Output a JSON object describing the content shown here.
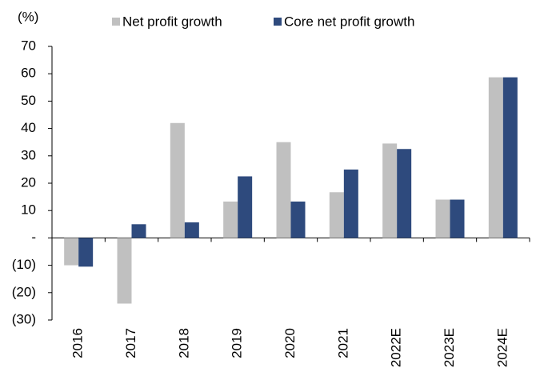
{
  "chart_data": {
    "type": "bar",
    "y_label": "(%)",
    "categories": [
      "2016",
      "2017",
      "2018",
      "2019",
      "2020",
      "2021",
      "2022E",
      "2023E",
      "2024E"
    ],
    "series": [
      {
        "name": "Net profit growth",
        "color": "#c0c0c0",
        "values": [
          -10,
          -24,
          42,
          13.3,
          35,
          16.7,
          34.5,
          14,
          58.7
        ]
      },
      {
        "name": "Core net profit growth",
        "color": "#2e4a7d",
        "values": [
          -10.5,
          5,
          5.7,
          22.5,
          13.3,
          25,
          32.5,
          14,
          58.7
        ]
      }
    ],
    "ylim": [
      -30,
      70
    ],
    "yticks": [
      {
        "value": -30,
        "label": "(30)"
      },
      {
        "value": -20,
        "label": "(20)"
      },
      {
        "value": -10,
        "label": "(10)"
      },
      {
        "value": 0,
        "label": "-"
      },
      10,
      20,
      30,
      40,
      50,
      60,
      70
    ],
    "grid": false
  }
}
